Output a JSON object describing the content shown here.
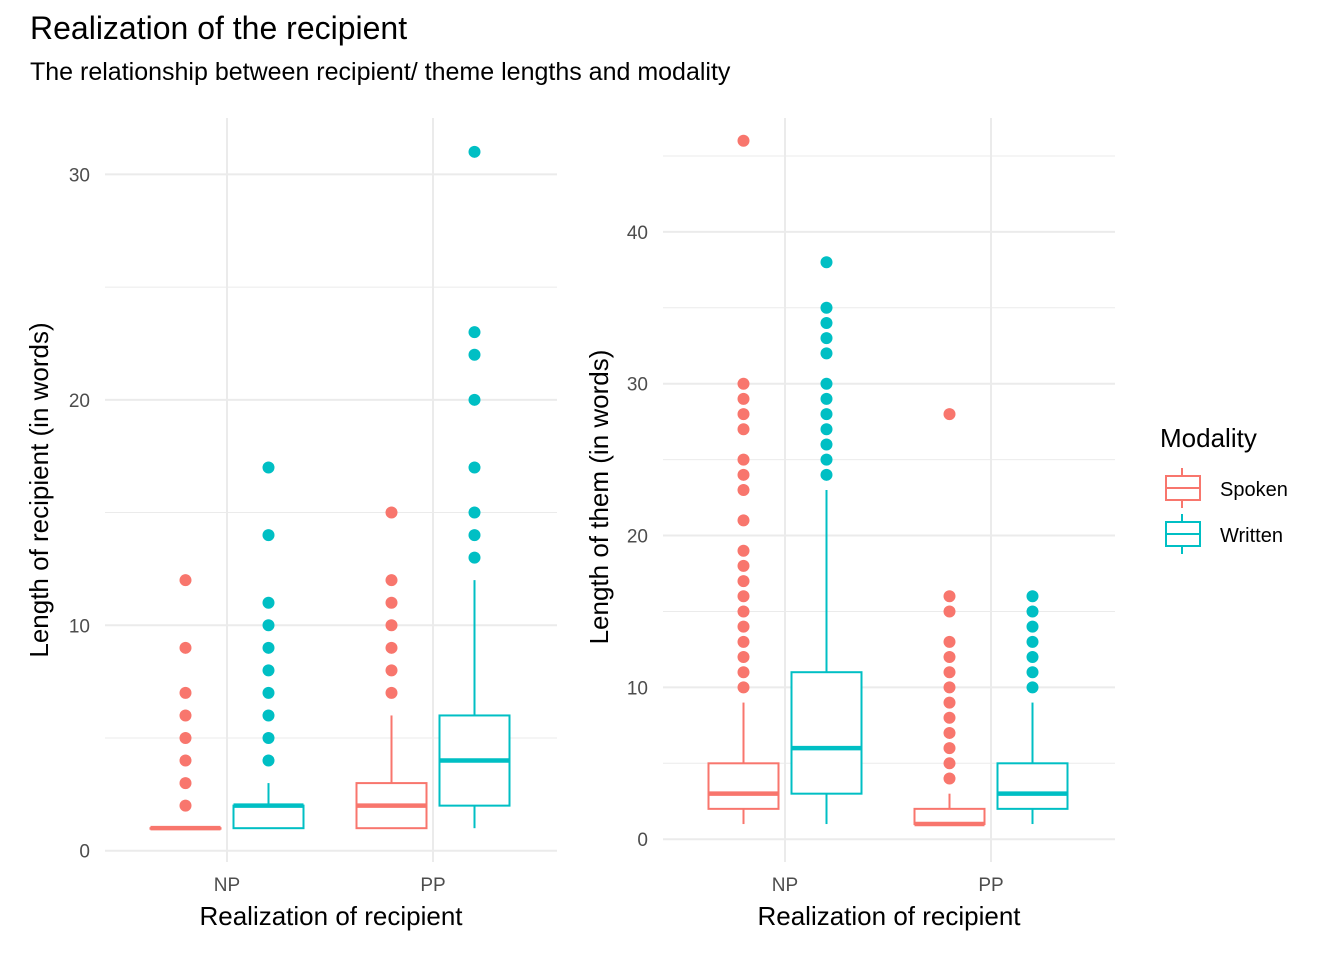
{
  "title": "Realization of the recipient",
  "subtitle": "The relationship between recipient/ theme lengths and modality",
  "colors": {
    "Spoken": "#F8766D",
    "Written": "#00BFC4",
    "grid": "#EBEBEB"
  },
  "legend": {
    "title": "Modality",
    "items": [
      {
        "label": "Spoken",
        "color": "#F8766D"
      },
      {
        "label": "Written",
        "color": "#00BFC4"
      }
    ]
  },
  "chart_data": [
    {
      "type": "box",
      "xlabel": "Realization of recipient",
      "ylabel": "Length of recipient (in words)",
      "categories": [
        "NP",
        "PP"
      ],
      "ylim": [
        -0.5,
        32.5
      ],
      "yticks": [
        0,
        10,
        20,
        30
      ],
      "yminor": [
        5,
        15,
        25
      ],
      "series": [
        {
          "name": "Spoken",
          "boxes": [
            {
              "category": "NP",
              "min": 1,
              "q1": 1,
              "median": 1,
              "q3": 1,
              "max": 1,
              "outliers": [
                2,
                3,
                4,
                5,
                6,
                7,
                9,
                12
              ]
            },
            {
              "category": "PP",
              "min": 1,
              "q1": 1,
              "median": 2,
              "q3": 3,
              "max": 6,
              "outliers": [
                7,
                8,
                9,
                10,
                11,
                12,
                15
              ]
            }
          ]
        },
        {
          "name": "Written",
          "boxes": [
            {
              "category": "NP",
              "min": 1,
              "q1": 1,
              "median": 2,
              "q3": 2,
              "max": 3,
              "outliers": [
                4,
                5,
                6,
                7,
                8,
                9,
                10,
                11,
                14,
                17
              ]
            },
            {
              "category": "PP",
              "min": 1,
              "q1": 2,
              "median": 4,
              "q3": 6,
              "max": 12,
              "outliers": [
                13,
                14,
                15,
                17,
                20,
                22,
                23,
                31
              ]
            }
          ]
        }
      ]
    },
    {
      "type": "box",
      "xlabel": "Realization of recipient",
      "ylabel": "Length of them (in words)",
      "categories": [
        "NP",
        "PP"
      ],
      "ylim": [
        -1.5,
        47.5
      ],
      "yticks": [
        0,
        10,
        20,
        30,
        40
      ],
      "yminor": [
        5,
        15,
        25,
        35,
        45
      ],
      "series": [
        {
          "name": "Spoken",
          "boxes": [
            {
              "category": "NP",
              "min": 1,
              "q1": 2,
              "median": 3,
              "q3": 5,
              "max": 9,
              "outliers": [
                10,
                11,
                12,
                13,
                14,
                15,
                16,
                17,
                18,
                19,
                21,
                23,
                24,
                25,
                27,
                28,
                29,
                30,
                46
              ]
            },
            {
              "category": "PP",
              "min": 1,
              "q1": 1,
              "median": 1,
              "q3": 2,
              "max": 3,
              "outliers": [
                4,
                5,
                6,
                7,
                8,
                9,
                10,
                11,
                12,
                13,
                15,
                16,
                28
              ]
            }
          ]
        },
        {
          "name": "Written",
          "boxes": [
            {
              "category": "NP",
              "min": 1,
              "q1": 3,
              "median": 6,
              "q3": 11,
              "max": 23,
              "outliers": [
                24,
                25,
                26,
                27,
                28,
                29,
                30,
                32,
                33,
                34,
                35,
                38
              ]
            },
            {
              "category": "PP",
              "min": 1,
              "q1": 2,
              "median": 3,
              "q3": 5,
              "max": 9,
              "outliers": [
                10,
                11,
                12,
                13,
                14,
                15,
                16
              ]
            }
          ]
        }
      ]
    }
  ]
}
